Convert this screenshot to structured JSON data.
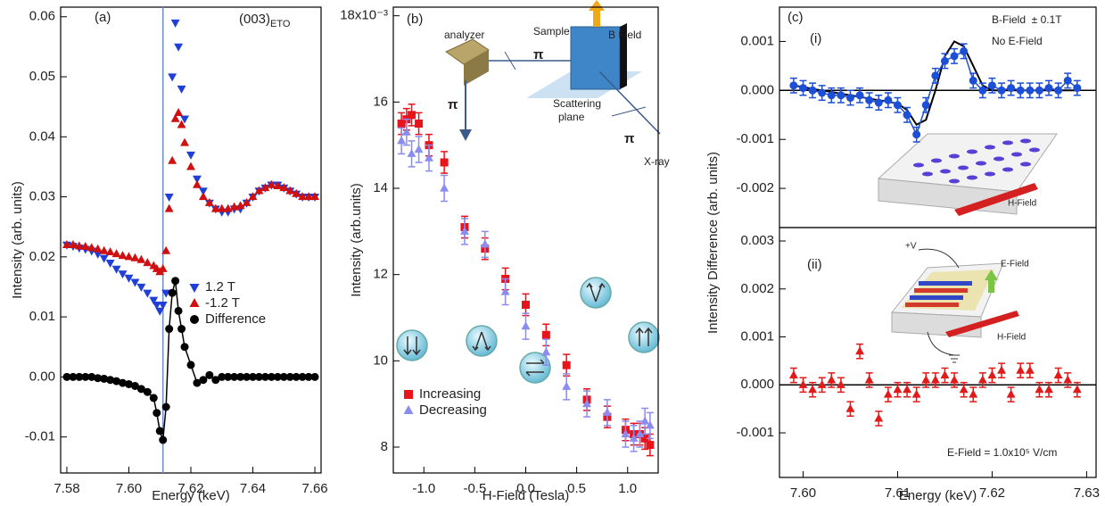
{
  "chart_data": [
    {
      "type": "scatter",
      "annotations": [
        "(a)",
        "(003)",
        "ETO"
      ],
      "xlabel": "Energy (keV)",
      "ylabel": "Intensity (arb. units)",
      "xlim": [
        7.578,
        7.662
      ],
      "xticks": [
        7.58,
        {
          "value": 7.6,
          "label": "7.60"
        },
        7.62,
        7.64,
        7.66
      ],
      "ylim": [
        -0.016,
        0.0616
      ],
      "yticks": [
        -0.01,
        {
          "value": 0,
          "label": "0.00"
        },
        0.01,
        0.02,
        0.03,
        0.04,
        0.05,
        0.06
      ],
      "vline": 7.611,
      "vline_color": "#6a8fd0",
      "legend": "center right",
      "x": [
        7.58,
        7.582,
        7.584,
        7.586,
        7.588,
        7.59,
        7.592,
        7.594,
        7.596,
        7.598,
        7.6,
        7.602,
        7.604,
        7.606,
        7.608,
        7.609,
        7.61,
        7.611,
        7.612,
        7.613,
        7.614,
        7.615,
        7.616,
        7.617,
        7.618,
        7.62,
        7.622,
        7.624,
        7.626,
        7.628,
        7.63,
        7.632,
        7.634,
        7.636,
        7.638,
        7.64,
        7.642,
        7.644,
        7.646,
        7.648,
        7.65,
        7.652,
        7.654,
        7.656,
        7.658,
        7.66
      ],
      "series": [
        {
          "name": "1.2 T",
          "color": "#1f3fd8",
          "marker": "triangle-down",
          "values": [
            0.022,
            0.0218,
            0.0215,
            0.0213,
            0.021,
            0.0205,
            0.0198,
            0.019,
            0.018,
            0.0172,
            0.0165,
            0.0158,
            0.015,
            0.014,
            0.0128,
            0.012,
            0.011,
            0.012,
            0.014,
            0.03,
            0.05,
            0.059,
            0.055,
            0.048,
            0.043,
            0.037,
            0.033,
            0.031,
            0.029,
            0.028,
            0.0275,
            0.0275,
            0.028,
            0.028,
            0.029,
            0.03,
            0.031,
            0.0315,
            0.032,
            0.032,
            0.0315,
            0.031,
            0.0305,
            0.03,
            0.03,
            0.03
          ]
        },
        {
          "name": "-1.2 T",
          "color": "#d01010",
          "marker": "triangle-up",
          "values": [
            0.022,
            0.022,
            0.0218,
            0.0217,
            0.0215,
            0.0213,
            0.021,
            0.0208,
            0.0205,
            0.0202,
            0.02,
            0.0198,
            0.0195,
            0.019,
            0.0185,
            0.018,
            0.0175,
            0.018,
            0.021,
            0.028,
            0.036,
            0.043,
            0.044,
            0.042,
            0.039,
            0.035,
            0.032,
            0.03,
            0.029,
            0.028,
            0.028,
            0.028,
            0.0283,
            0.0285,
            0.029,
            0.03,
            0.031,
            0.0315,
            0.032,
            0.0318,
            0.0315,
            0.031,
            0.0305,
            0.03,
            0.03,
            0.03
          ]
        },
        {
          "name": "Difference",
          "color": "#000000",
          "marker": "circle",
          "line": true,
          "values": [
            0,
            0,
            0,
            0,
            0,
            -0.0002,
            -0.0003,
            -0.0005,
            -0.0007,
            -0.001,
            -0.0012,
            -0.0015,
            -0.002,
            -0.0025,
            -0.0035,
            -0.006,
            -0.009,
            -0.0105,
            -0.005,
            0.008,
            0.014,
            0.016,
            0.011,
            0.008,
            0.005,
            0.002,
            -0.001,
            -0.0005,
            0.0003,
            -0.0005,
            0,
            0,
            0,
            0,
            0,
            0,
            0,
            0,
            0,
            0,
            0,
            0,
            0,
            0,
            0,
            0
          ]
        }
      ]
    },
    {
      "type": "scatter",
      "annotations": [
        "(b)",
        "analyzer",
        "Sample",
        "B Field",
        "π",
        "π",
        "π",
        "Scattering",
        "plane",
        "X-ray"
      ],
      "xlabel": "H-Field (Tesla)",
      "ylabel": "Intensity (arb.units)",
      "xlim": [
        -1.3,
        1.3
      ],
      "xticks": [
        {
          "value": -1,
          "label": "-1.0"
        },
        -0.5,
        {
          "value": 0,
          "label": "0.0"
        },
        0.5,
        {
          "value": 1,
          "label": "1.0"
        }
      ],
      "ylim": [
        7.4,
        18.2
      ],
      "yticks": [
        8,
        10,
        12,
        14,
        16,
        {
          "value": 18,
          "label": "18x10⁻³"
        }
      ],
      "legend": "lower left",
      "x": [
        -1.22,
        -1.17,
        -1.12,
        -1.05,
        -0.95,
        -0.8,
        -0.6,
        -0.4,
        -0.2,
        0,
        0.2,
        0.4,
        0.6,
        0.8,
        0.98,
        1.06,
        1.12,
        1.17,
        1.22
      ],
      "series": [
        {
          "name": "Increasing",
          "color": "#e8141c",
          "marker": "square",
          "values": [
            15.5,
            15.6,
            15.7,
            15.5,
            15.0,
            14.6,
            13.1,
            12.6,
            11.9,
            11.3,
            10.6,
            9.9,
            9.1,
            8.7,
            8.4,
            8.3,
            8.3,
            8.2,
            8.05
          ],
          "errors": [
            0.25,
            0.25,
            0.25,
            0.25,
            0.25,
            0.25,
            0.25,
            0.25,
            0.25,
            0.25,
            0.25,
            0.25,
            0.25,
            0.25,
            0.25,
            0.25,
            0.25,
            0.25,
            0.25
          ]
        },
        {
          "name": "Decreasing",
          "color": "#8a8cf0",
          "marker": "triangle-up",
          "values": [
            15.1,
            15.3,
            14.8,
            14.9,
            14.7,
            14.0,
            13.0,
            12.7,
            11.6,
            10.8,
            10.2,
            9.4,
            9.0,
            8.8,
            8.3,
            8.2,
            8.3,
            8.6,
            8.5
          ],
          "errors": [
            0.3,
            0.3,
            0.3,
            0.3,
            0.3,
            0.3,
            0.3,
            0.3,
            0.3,
            0.3,
            0.3,
            0.3,
            0.3,
            0.3,
            0.3,
            0.3,
            0.3,
            0.3,
            0.3
          ]
        }
      ]
    },
    {
      "type": "scatter",
      "annotations": [
        "(c)",
        "(i)",
        "B-Field  ± 0.1T",
        "No E-Field",
        "H-Field"
      ],
      "ylabel": "Intensity Difference (arb. units)",
      "xlim": [
        7.5975,
        7.631
      ],
      "ylim": [
        -0.0028,
        0.0017
      ],
      "yticks": [
        -0.002,
        -0.001,
        {
          "value": 0,
          "label": "0.000"
        },
        0.001
      ],
      "hline": 0,
      "x": [
        7.599,
        7.6,
        7.601,
        7.602,
        7.603,
        7.604,
        7.605,
        7.606,
        7.607,
        7.608,
        7.609,
        7.61,
        7.611,
        7.612,
        7.613,
        7.614,
        7.615,
        7.616,
        7.617,
        7.618,
        7.619,
        7.62,
        7.621,
        7.622,
        7.623,
        7.624,
        7.625,
        7.626,
        7.627,
        7.628,
        7.629
      ],
      "series": [
        {
          "color": "#1d4fd6",
          "marker": "circle",
          "line": true,
          "values": [
            0.0001,
            5e-05,
            0,
            -5e-05,
            -0.0001,
            -0.0001,
            -0.00015,
            -0.0001,
            -0.0002,
            -0.00025,
            -0.0002,
            -0.0003,
            -0.0005,
            -0.0009,
            -0.0003,
            0.0003,
            0.0006,
            0.0007,
            0.0008,
            0.0002,
            0,
            0.0001,
            0,
            5e-05,
            0,
            0,
            0,
            5e-05,
            0,
            0.0002,
            5e-05
          ],
          "errors": [
            0.00015,
            0.00015,
            0.00015,
            0.00015,
            0.00015,
            0.00015,
            0.00015,
            0.00015,
            0.00015,
            0.00015,
            0.00015,
            0.00015,
            0.00015,
            0.00015,
            0.00015,
            0.00015,
            0.00015,
            0.00015,
            0.00015,
            0.00015,
            0.00015,
            0.00015,
            0.00015,
            0.00015,
            0.00015,
            0.00015,
            0.00015,
            0.00015,
            0.00015,
            0.00015,
            0.00015
          ]
        }
      ],
      "fit": {
        "color": "#000000",
        "values": [
          0.0001,
          7e-05,
          3e-05,
          0,
          -3e-05,
          -7e-05,
          -0.0001,
          -0.00013,
          -0.00017,
          -0.0002,
          -0.00023,
          -0.00027,
          -0.0004,
          -0.0007,
          -0.0006,
          0,
          0.0007,
          0.001,
          0.0009,
          0.0005,
          0.0001,
          0,
          0,
          0,
          0,
          0,
          0,
          0,
          0,
          0,
          0
        ]
      }
    },
    {
      "type": "scatter",
      "annotations": [
        "(ii)",
        "+V",
        "E-Field",
        "H-Field",
        "E-Field = 1.0x10⁵ V/cm"
      ],
      "xlabel": "Energy (keV)",
      "xlim": [
        7.5975,
        7.631
      ],
      "xticks": [
        {
          "value": 7.6,
          "label": "7.60"
        },
        7.61,
        7.62,
        7.63
      ],
      "ylim": [
        -0.00193,
        0.00328
      ],
      "yticks": [
        -0.001,
        {
          "value": 0,
          "label": "0.000"
        },
        0.001,
        0.002,
        0.003
      ],
      "hline": 0,
      "x": [
        7.599,
        7.6,
        7.601,
        7.602,
        7.603,
        7.604,
        7.605,
        7.606,
        7.607,
        7.608,
        7.609,
        7.61,
        7.611,
        7.612,
        7.613,
        7.614,
        7.615,
        7.616,
        7.617,
        7.618,
        7.619,
        7.62,
        7.621,
        7.622,
        7.623,
        7.624,
        7.625,
        7.626,
        7.627,
        7.628,
        7.629
      ],
      "series": [
        {
          "color": "#e31a1a",
          "marker": "triangle-up",
          "values": [
            0.0002,
            0,
            -0.0001,
            0,
            0.0001,
            0,
            -0.0005,
            0.0007,
            0.0001,
            -0.0007,
            -0.0002,
            -0.0001,
            -0.0001,
            -0.0002,
            0.0001,
            0.0001,
            0.0002,
            0.0001,
            -0.0001,
            -0.0002,
            0.0001,
            0.0002,
            0.0003,
            -0.0002,
            0.0003,
            0.0003,
            -0.0001,
            -0.0001,
            0.0002,
            0.0001,
            -0.0001
          ],
          "errors": [
            0.00015,
            0.00015,
            0.00015,
            0.00015,
            0.00015,
            0.00015,
            0.00015,
            0.00015,
            0.00015,
            0.00015,
            0.00015,
            0.00015,
            0.00015,
            0.00015,
            0.00015,
            0.00015,
            0.00015,
            0.00015,
            0.00015,
            0.00015,
            0.00015,
            0.00015,
            0.00015,
            0.00015,
            0.00015,
            0.00015,
            0.00015,
            0.00015,
            0.00015,
            0.00015,
            0.00015
          ]
        }
      ]
    }
  ]
}
